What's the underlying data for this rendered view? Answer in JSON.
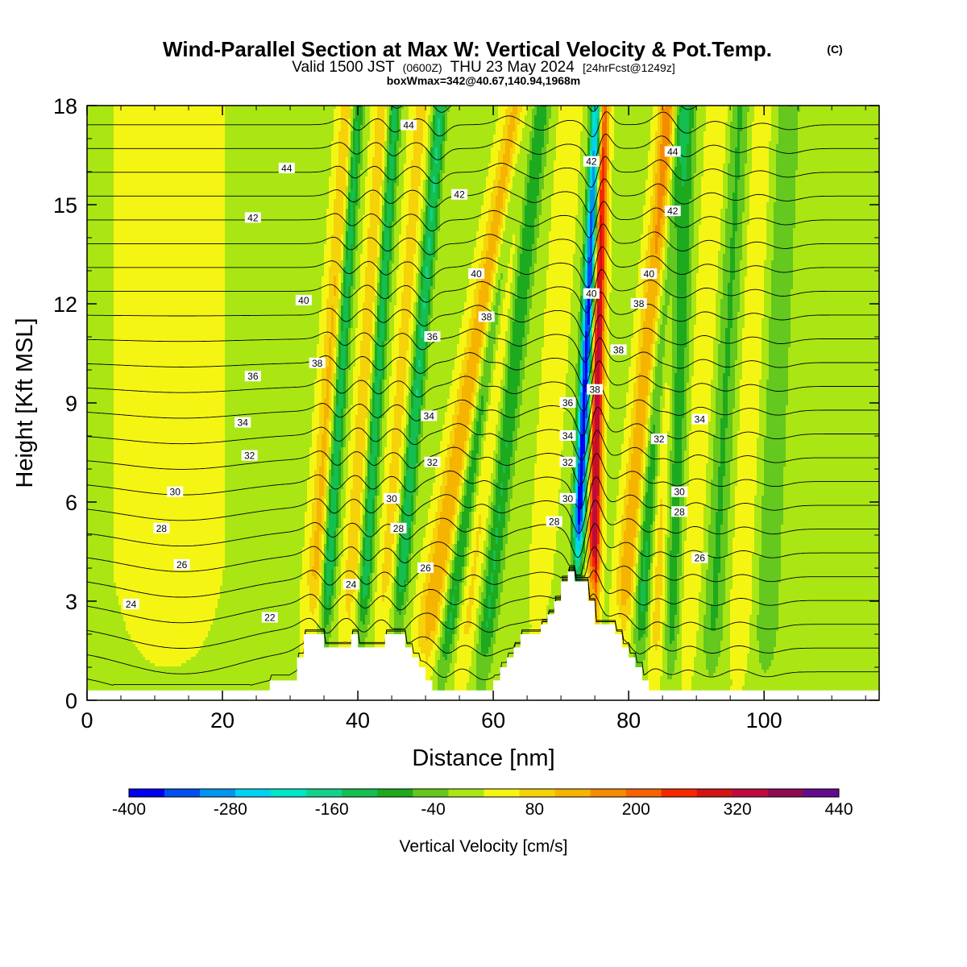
{
  "chart_data": {
    "type": "heatmap",
    "title": {
      "main": "Wind-Parallel Section at Max W: Vertical Velocity & Pot.Temp.",
      "copyright": "(C)",
      "valid_prefix": "Valid 1500 JST",
      "valid_utc": "(0600Z)",
      "valid_date": "THU 23 May 2024",
      "forecast": "[24hrFcst@1249z]",
      "box_info": "boxWmax=342@40.67,140.94,1968m"
    },
    "xlabel": "Distance [nm]",
    "ylabel": "Height [Kft MSL]",
    "xlim": [
      0,
      117
    ],
    "ylim": [
      0,
      18
    ],
    "xticks": [
      "0",
      "20",
      "40",
      "60",
      "80",
      "100"
    ],
    "xtick_values": [
      0,
      20,
      40,
      60,
      80,
      100
    ],
    "yticks": [
      "0",
      "3",
      "6",
      "9",
      "12",
      "15",
      "18"
    ],
    "ytick_values": [
      0,
      3,
      6,
      9,
      12,
      15,
      18
    ],
    "colorbar": {
      "label": "Vertical Velocity [cm/s]",
      "tick_labels": [
        "-400",
        "-280",
        "-160",
        "-40",
        "80",
        "200",
        "320",
        "440"
      ],
      "tick_values": [
        -400,
        -280,
        -160,
        -40,
        80,
        200,
        320,
        440
      ],
      "colors": [
        "#0000f0",
        "#0050f0",
        "#0096f0",
        "#00d2f0",
        "#00e6c8",
        "#14d28c",
        "#14be50",
        "#1eaa1e",
        "#64c81e",
        "#aae614",
        "#f5f514",
        "#f5d20a",
        "#f5b400",
        "#f58c00",
        "#f56400",
        "#f52800",
        "#d21414",
        "#be0a3c",
        "#8c0a50",
        "#640a8c"
      ]
    },
    "terrain": [
      [
        0,
        0.3
      ],
      [
        4,
        0.3
      ],
      [
        4,
        0.3
      ],
      [
        27,
        0.3
      ],
      [
        27,
        0.6
      ],
      [
        31,
        0.6
      ],
      [
        31,
        1.3
      ],
      [
        32,
        1.3
      ],
      [
        32,
        2.0
      ],
      [
        35,
        2.0
      ],
      [
        35,
        1.6
      ],
      [
        39,
        1.6
      ],
      [
        39,
        2.0
      ],
      [
        40,
        2.0
      ],
      [
        40,
        1.6
      ],
      [
        44,
        1.6
      ],
      [
        44,
        2.0
      ],
      [
        47,
        2.0
      ],
      [
        47,
        1.6
      ],
      [
        48,
        1.6
      ],
      [
        48,
        1.3
      ],
      [
        49,
        1.3
      ],
      [
        49,
        1.0
      ],
      [
        50,
        1.0
      ],
      [
        50,
        0.6
      ],
      [
        51,
        0.6
      ],
      [
        51,
        0.3
      ],
      [
        60,
        0.3
      ],
      [
        60,
        0.6
      ],
      [
        61,
        0.6
      ],
      [
        61,
        1.0
      ],
      [
        62,
        1.0
      ],
      [
        62,
        1.3
      ],
      [
        63,
        1.3
      ],
      [
        63,
        1.6
      ],
      [
        64,
        1.6
      ],
      [
        64,
        2.0
      ],
      [
        67,
        2.0
      ],
      [
        67,
        2.3
      ],
      [
        68,
        2.3
      ],
      [
        68,
        2.6
      ],
      [
        69,
        2.6
      ],
      [
        69,
        3.0
      ],
      [
        70,
        3.0
      ],
      [
        70,
        3.6
      ],
      [
        71,
        3.6
      ],
      [
        71,
        3.9
      ],
      [
        72,
        3.9
      ],
      [
        72,
        3.6
      ],
      [
        74,
        3.6
      ],
      [
        74,
        3.0
      ],
      [
        75,
        3.0
      ],
      [
        75,
        2.3
      ],
      [
        78,
        2.3
      ],
      [
        78,
        2.0
      ],
      [
        79,
        2.0
      ],
      [
        79,
        1.6
      ],
      [
        80,
        1.6
      ],
      [
        80,
        1.3
      ],
      [
        81,
        1.3
      ],
      [
        81,
        1.0
      ],
      [
        82,
        1.0
      ],
      [
        82,
        0.6
      ],
      [
        83,
        0.6
      ],
      [
        83,
        0.3
      ],
      [
        117,
        0.3
      ]
    ],
    "updraft_bands": [
      {
        "x_base": 32.5,
        "tilt": 0.35,
        "w_max": 110,
        "width": 1.4
      },
      {
        "x_base": 38.0,
        "tilt": 0.32,
        "w_max": 90,
        "width": 1.3
      },
      {
        "x_base": 43.0,
        "tilt": 0.35,
        "w_max": 70,
        "width": 1.3
      },
      {
        "x_base": 48.5,
        "tilt": 0.85,
        "w_max": 130,
        "width": 1.8
      },
      {
        "x_base": 55.0,
        "tilt": 0.55,
        "w_max": 60,
        "width": 1.6
      },
      {
        "x_base": 66.0,
        "tilt": 0.3,
        "w_max": 50,
        "width": 1.5
      },
      {
        "x_base": 74.5,
        "tilt": 0.09,
        "w_max": 342,
        "width": 0.9
      },
      {
        "x_base": 78.0,
        "tilt": 0.45,
        "w_max": 130,
        "width": 1.5
      },
      {
        "x_base": 84.0,
        "tilt": 0.12,
        "w_max": 80,
        "width": 1.5
      },
      {
        "x_base": 88.0,
        "tilt": 0.3,
        "w_max": 50,
        "width": 1.6
      },
      {
        "x_base": 96.0,
        "tilt": 0.2,
        "w_max": 40,
        "width": 1.8
      }
    ],
    "downdraft_bands": [
      {
        "x_base": 34.5,
        "tilt": 0.3,
        "w_min": -170,
        "width": 1.0
      },
      {
        "x_base": 40.0,
        "tilt": 0.3,
        "w_min": -150,
        "width": 1.0
      },
      {
        "x_base": 45.0,
        "tilt": 0.4,
        "w_min": -160,
        "width": 1.0
      },
      {
        "x_base": 52.0,
        "tilt": 0.7,
        "w_min": -130,
        "width": 1.2
      },
      {
        "x_base": 58.0,
        "tilt": 0.5,
        "w_min": -120,
        "width": 1.4
      },
      {
        "x_base": 71.5,
        "tilt": 0.22,
        "w_min": -400,
        "width": 0.9
      },
      {
        "x_base": 81.0,
        "tilt": 0.35,
        "w_min": -140,
        "width": 1.2
      },
      {
        "x_base": 86.0,
        "tilt": 0.15,
        "w_min": -110,
        "width": 1.3
      },
      {
        "x_base": 92.0,
        "tilt": 0.25,
        "w_min": -80,
        "width": 1.6
      },
      {
        "x_base": 100.0,
        "tilt": 0.2,
        "w_min": -70,
        "width": 1.8
      }
    ],
    "theta_levels": [
      20,
      21,
      22,
      23,
      24,
      25,
      26,
      27,
      28,
      29,
      30,
      31,
      32,
      33,
      34,
      35,
      36,
      37,
      38,
      39,
      40,
      41,
      42,
      43,
      44,
      45
    ],
    "theta_labels": [
      {
        "x": 6.5,
        "y": 2.9,
        "text": "24"
      },
      {
        "x": 27,
        "y": 2.5,
        "text": "22"
      },
      {
        "x": 14,
        "y": 4.1,
        "text": "26"
      },
      {
        "x": 11,
        "y": 5.2,
        "text": "28"
      },
      {
        "x": 13,
        "y": 6.3,
        "text": "30"
      },
      {
        "x": 24,
        "y": 7.4,
        "text": "32"
      },
      {
        "x": 23,
        "y": 8.4,
        "text": "34"
      },
      {
        "x": 24.5,
        "y": 9.8,
        "text": "36"
      },
      {
        "x": 34,
        "y": 10.2,
        "text": "38"
      },
      {
        "x": 32,
        "y": 12.1,
        "text": "40"
      },
      {
        "x": 24.5,
        "y": 14.6,
        "text": "42"
      },
      {
        "x": 29.5,
        "y": 16.1,
        "text": "44"
      },
      {
        "x": 39,
        "y": 3.5,
        "text": "24"
      },
      {
        "x": 50,
        "y": 4.0,
        "text": "26"
      },
      {
        "x": 46,
        "y": 5.2,
        "text": "28"
      },
      {
        "x": 45,
        "y": 6.1,
        "text": "30"
      },
      {
        "x": 51,
        "y": 7.2,
        "text": "32"
      },
      {
        "x": 50.5,
        "y": 8.6,
        "text": "34"
      },
      {
        "x": 51,
        "y": 11.0,
        "text": "36"
      },
      {
        "x": 59,
        "y": 11.6,
        "text": "38"
      },
      {
        "x": 57.5,
        "y": 12.9,
        "text": "40"
      },
      {
        "x": 55,
        "y": 15.3,
        "text": "42"
      },
      {
        "x": 47.5,
        "y": 17.4,
        "text": "44"
      },
      {
        "x": 69,
        "y": 5.4,
        "text": "28"
      },
      {
        "x": 71,
        "y": 6.1,
        "text": "30"
      },
      {
        "x": 71,
        "y": 7.2,
        "text": "32"
      },
      {
        "x": 71,
        "y": 8.0,
        "text": "34"
      },
      {
        "x": 71,
        "y": 9.0,
        "text": "36"
      },
      {
        "x": 75,
        "y": 9.4,
        "text": "38"
      },
      {
        "x": 74.5,
        "y": 12.3,
        "text": "40"
      },
      {
        "x": 74.5,
        "y": 16.3,
        "text": "42"
      },
      {
        "x": 78.5,
        "y": 10.6,
        "text": "38"
      },
      {
        "x": 81.5,
        "y": 12.0,
        "text": "38"
      },
      {
        "x": 83,
        "y": 12.9,
        "text": "40"
      },
      {
        "x": 86.5,
        "y": 14.8,
        "text": "42"
      },
      {
        "x": 86.5,
        "y": 16.6,
        "text": "44"
      },
      {
        "x": 84.5,
        "y": 7.9,
        "text": "32"
      },
      {
        "x": 87.5,
        "y": 6.3,
        "text": "30"
      },
      {
        "x": 87.5,
        "y": 5.7,
        "text": "28"
      },
      {
        "x": 90.5,
        "y": 4.3,
        "text": "26"
      },
      {
        "x": 90.5,
        "y": 8.5,
        "text": "34"
      }
    ]
  }
}
